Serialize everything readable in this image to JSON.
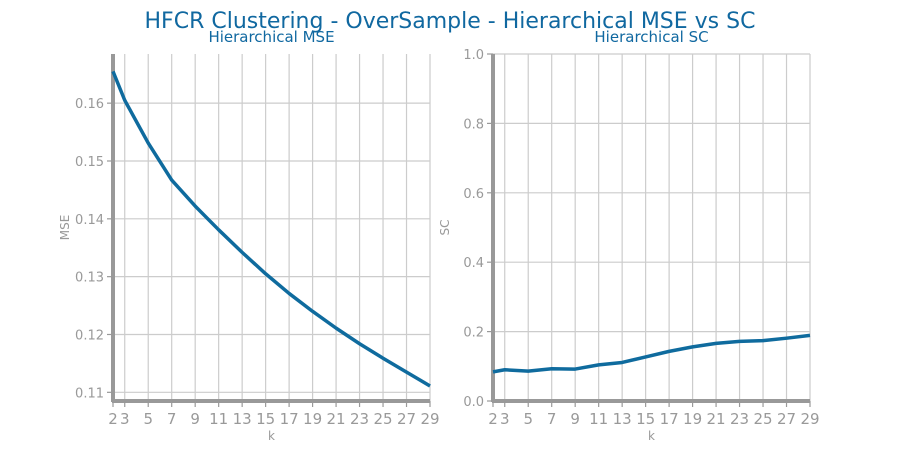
{
  "figure": {
    "title": "HFCR Clustering - OverSample - Hierarchical MSE vs SC"
  },
  "colors": {
    "title": "#1068a0",
    "line": "#0f6b9e",
    "grid": "#cccccc",
    "spine": "#999999",
    "tick_text": "#999999"
  },
  "chart_data": [
    {
      "type": "line",
      "title": "Hierarchical MSE",
      "xlabel": "k",
      "ylabel": "MSE",
      "grid": true,
      "xlim": [
        2,
        29
      ],
      "ylim": [
        0.1085,
        0.1685
      ],
      "xticks": [
        2,
        3,
        5,
        7,
        9,
        11,
        13,
        15,
        17,
        19,
        21,
        23,
        25,
        27,
        29
      ],
      "xtick_labels": [
        "2",
        "3",
        "5",
        "7",
        "9",
        "11",
        "13",
        "15",
        "17",
        "19",
        "21",
        "23",
        "25",
        "27",
        "29"
      ],
      "yticks": [
        0.11,
        0.12,
        0.13,
        0.14,
        0.15,
        0.16
      ],
      "ytick_labels": [
        "0.11",
        "0.12",
        "0.13",
        "0.14",
        "0.15",
        "0.16"
      ],
      "x": [
        2,
        3,
        5,
        7,
        9,
        11,
        13,
        15,
        17,
        19,
        21,
        23,
        25,
        27,
        29
      ],
      "y": [
        0.1655,
        0.1605,
        0.1531,
        0.1467,
        0.1422,
        0.1381,
        0.1342,
        0.1305,
        0.1271,
        0.124,
        0.1211,
        0.1184,
        0.1159,
        0.1135,
        0.1111
      ]
    },
    {
      "type": "line",
      "title": "Hierarchical SC",
      "xlabel": "k",
      "ylabel": "SC",
      "grid": true,
      "xlim": [
        2,
        29
      ],
      "ylim": [
        0,
        1
      ],
      "xticks": [
        2,
        3,
        5,
        7,
        9,
        11,
        13,
        15,
        17,
        19,
        21,
        23,
        25,
        27,
        29
      ],
      "xtick_labels": [
        "2",
        "3",
        "5",
        "7",
        "9",
        "11",
        "13",
        "15",
        "17",
        "19",
        "21",
        "23",
        "25",
        "27",
        "29"
      ],
      "yticks": [
        0,
        0.2,
        0.4,
        0.6,
        0.8,
        1.0
      ],
      "ytick_labels": [
        "0.0",
        "0.2",
        "0.4",
        "0.6",
        "0.8",
        "1.0"
      ],
      "x": [
        2,
        3,
        5,
        7,
        9,
        11,
        13,
        15,
        17,
        19,
        21,
        23,
        25,
        27,
        29
      ],
      "y": [
        0.084,
        0.09,
        0.086,
        0.093,
        0.092,
        0.104,
        0.111,
        0.127,
        0.143,
        0.156,
        0.166,
        0.172,
        0.174,
        0.181,
        0.189
      ]
    }
  ]
}
